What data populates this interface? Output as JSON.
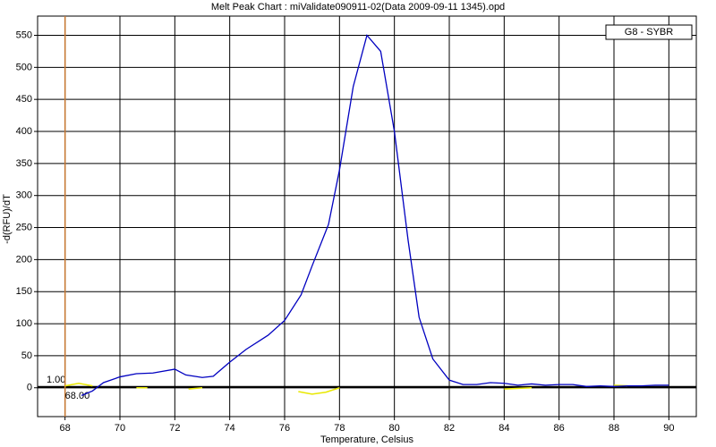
{
  "chart_data": {
    "type": "line",
    "title": "Melt Peak Chart : miValidate090911-02(Data 2009-09-11 1345).opd",
    "x_label": "Temperature, Celsius",
    "y_label": "-d(RFU)/dT",
    "xlim": [
      67,
      91
    ],
    "ylim": [
      -45,
      580
    ],
    "xticks": [
      68,
      70,
      72,
      74,
      76,
      78,
      80,
      82,
      84,
      86,
      88,
      90
    ],
    "yticks": [
      0,
      50,
      100,
      150,
      200,
      250,
      300,
      350,
      400,
      450,
      500,
      550
    ],
    "grid": true,
    "legend": "G8 - SYBR",
    "threshold": {
      "value": 1,
      "label": "1.00",
      "color": "#000000"
    },
    "begin_temp": {
      "value": 68,
      "label": "68.00",
      "color": "#c87832"
    },
    "series": [
      {
        "color": "#0000c0",
        "x": [
          68.6,
          69,
          69.4,
          70,
          70.6,
          71.2,
          72,
          72.4,
          73,
          73.4,
          74,
          74.6,
          75.4,
          76,
          76.6,
          77,
          77.6,
          78,
          78.5,
          79,
          79.5,
          80,
          80.5,
          80.9,
          81.4,
          82,
          82.5,
          83,
          83.5,
          84,
          84.5,
          85,
          85.5,
          86,
          86.5,
          87,
          87.5,
          88,
          88.5,
          89,
          89.5,
          90
        ],
        "values": [
          -12,
          -5,
          8,
          17,
          22,
          23,
          29,
          20,
          16,
          18,
          40,
          60,
          82,
          105,
          145,
          190,
          255,
          340,
          470,
          550,
          525,
          400,
          230,
          110,
          45,
          12,
          5,
          5,
          8,
          7,
          4,
          6,
          4,
          5,
          5,
          2,
          3,
          2,
          3,
          3,
          4,
          4
        ]
      },
      {
        "color": "#e8e800",
        "x": [
          68,
          68.5,
          69,
          70,
          70.6,
          71,
          72,
          72.5,
          73,
          76,
          76.5,
          77,
          77.5,
          78,
          83,
          84,
          85,
          87.5,
          88,
          88.5
        ],
        "values": [
          3,
          7,
          3,
          null,
          0,
          0,
          null,
          -2,
          0,
          null,
          -6,
          -10,
          -7,
          0,
          null,
          -2,
          0,
          null,
          4,
          3
        ]
      }
    ]
  }
}
